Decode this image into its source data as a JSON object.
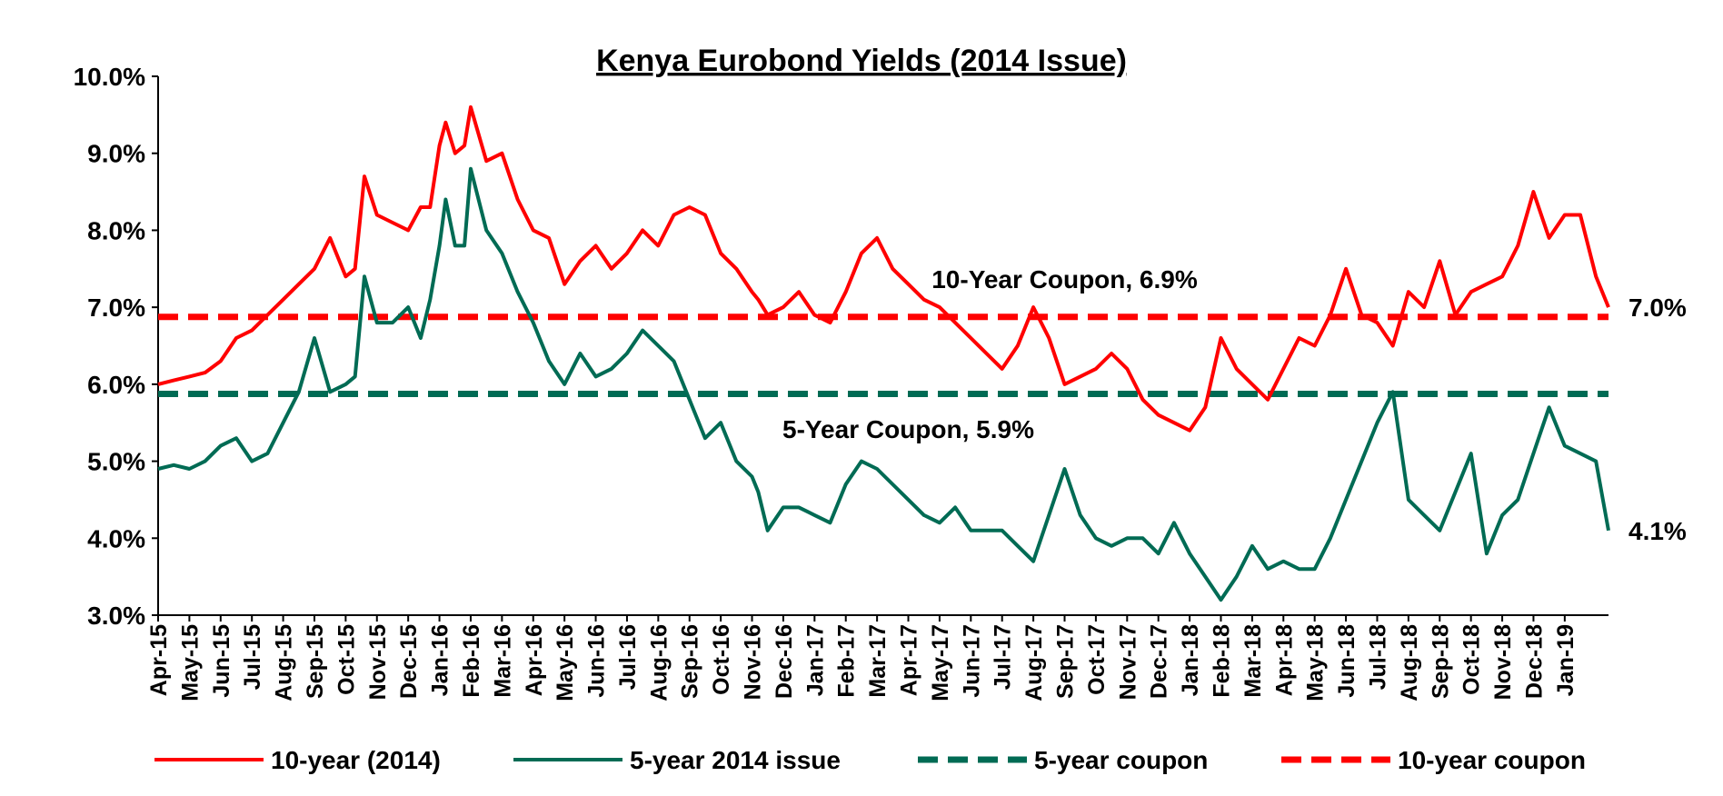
{
  "chart_data": {
    "type": "line",
    "title": "Kenya Eurobond Yields (2014 Issue)",
    "y_axis": {
      "min": 3.0,
      "max": 10.0,
      "ticks": [
        "3.0%",
        "4.0%",
        "5.0%",
        "6.0%",
        "7.0%",
        "8.0%",
        "9.0%",
        "10.0%"
      ]
    },
    "x_ticks": [
      "Apr-15",
      "May-15",
      "Jun-15",
      "Jul-15",
      "Aug-15",
      "Sep-15",
      "Oct-15",
      "Nov-15",
      "Dec-15",
      "Jan-16",
      "Feb-16",
      "Mar-16",
      "Apr-16",
      "May-16",
      "Jun-16",
      "Jul-16",
      "Aug-16",
      "Sep-16",
      "Oct-16",
      "Nov-16",
      "Dec-16",
      "Jan-17",
      "Feb-17",
      "Mar-17",
      "Apr-17",
      "May-17",
      "Jun-17",
      "Jul-17",
      "Aug-17",
      "Sep-17",
      "Oct-17",
      "Nov-17",
      "Dec-17",
      "Jan-18",
      "Feb-18",
      "Mar-18",
      "Apr-18",
      "May-18",
      "Jun-18",
      "Jul-18",
      "Aug-18",
      "Sep-18",
      "Oct-18",
      "Nov-18",
      "Dec-18",
      "Jan-19"
    ],
    "x_month_index_range": [
      0,
      46.4
    ],
    "series": [
      {
        "name": "10-year (2014)",
        "color": "#ff0000",
        "style": "solid",
        "x": [
          0,
          0.5,
          1,
          1.5,
          2,
          2.5,
          3,
          3.5,
          4,
          4.5,
          5,
          5.5,
          6,
          6.3,
          6.6,
          7,
          7.5,
          8,
          8.4,
          8.7,
          9,
          9.2,
          9.5,
          9.8,
          10,
          10.5,
          11,
          11.5,
          12,
          12.5,
          13,
          13.5,
          14,
          14.5,
          15,
          15.5,
          16,
          16.5,
          17,
          17.5,
          18,
          18.5,
          19,
          19.2,
          19.5,
          20,
          20.5,
          21,
          21.5,
          22,
          22.5,
          23,
          23.5,
          24,
          24.5,
          25,
          25.5,
          26,
          26.5,
          27,
          27.5,
          28,
          28.5,
          29,
          29.5,
          30,
          30.5,
          31,
          31.5,
          32,
          32.5,
          33,
          33.5,
          34,
          34.5,
          35,
          35.5,
          36,
          36.5,
          37,
          37.5,
          38,
          38.5,
          39,
          39.5,
          40,
          40.5,
          41,
          41.5,
          42,
          42.5,
          43,
          43.5,
          44,
          44.5,
          45,
          45.5,
          46,
          46.4
        ],
        "y": [
          6.0,
          6.05,
          6.1,
          6.15,
          6.3,
          6.6,
          6.7,
          6.9,
          7.1,
          7.3,
          7.5,
          7.9,
          7.4,
          7.5,
          8.7,
          8.2,
          8.1,
          8.0,
          8.3,
          8.3,
          9.1,
          9.4,
          9.0,
          9.1,
          9.6,
          8.9,
          9.0,
          8.4,
          8.0,
          7.9,
          7.3,
          7.6,
          7.8,
          7.5,
          7.7,
          8.0,
          7.8,
          8.2,
          8.3,
          8.2,
          7.7,
          7.5,
          7.2,
          7.1,
          6.9,
          7.0,
          7.2,
          6.9,
          6.8,
          7.2,
          7.7,
          7.9,
          7.5,
          7.3,
          7.1,
          7.0,
          6.8,
          6.6,
          6.4,
          6.2,
          6.5,
          7.0,
          6.6,
          6.0,
          6.1,
          6.2,
          6.4,
          6.2,
          5.8,
          5.6,
          5.5,
          5.4,
          5.7,
          6.6,
          6.2,
          6.0,
          5.8,
          6.2,
          6.6,
          6.5,
          6.9,
          7.5,
          6.9,
          6.8,
          6.5,
          7.2,
          7.0,
          7.6,
          6.9,
          7.2,
          7.3,
          7.4,
          7.8,
          8.5,
          7.9,
          8.2,
          8.2,
          7.4,
          7.0
        ]
      },
      {
        "name": "5-year 2014 issue",
        "color": "#006b54",
        "style": "solid",
        "x": [
          0,
          0.5,
          1,
          1.5,
          2,
          2.5,
          3,
          3.5,
          4,
          4.5,
          5,
          5.5,
          6,
          6.3,
          6.6,
          7,
          7.5,
          8,
          8.4,
          8.7,
          9,
          9.2,
          9.5,
          9.8,
          10,
          10.5,
          11,
          11.5,
          12,
          12.5,
          13,
          13.5,
          14,
          14.5,
          15,
          15.5,
          16,
          16.5,
          17,
          17.5,
          18,
          18.5,
          19,
          19.2,
          19.5,
          20,
          20.5,
          21,
          21.5,
          22,
          22.5,
          23,
          23.5,
          24,
          24.5,
          25,
          25.5,
          26,
          26.5,
          27,
          27.5,
          28,
          28.5,
          29,
          29.5,
          30,
          30.5,
          31,
          31.5,
          32,
          32.5,
          33,
          33.5,
          34,
          34.5,
          35,
          35.5,
          36,
          36.5,
          37,
          37.5,
          38,
          38.5,
          39,
          39.5,
          40,
          40.5,
          41,
          41.5,
          42,
          42.5,
          43,
          43.5,
          44,
          44.5,
          45,
          45.5,
          46,
          46.4
        ],
        "y": [
          4.9,
          4.95,
          4.9,
          5.0,
          5.2,
          5.3,
          5.0,
          5.1,
          5.5,
          5.9,
          6.6,
          5.9,
          6.0,
          6.1,
          7.4,
          6.8,
          6.8,
          7.0,
          6.6,
          7.1,
          7.8,
          8.4,
          7.8,
          7.8,
          8.8,
          8.0,
          7.7,
          7.2,
          6.8,
          6.3,
          6.0,
          6.4,
          6.1,
          6.2,
          6.4,
          6.7,
          6.5,
          6.3,
          5.8,
          5.3,
          5.5,
          5.0,
          4.8,
          4.6,
          4.1,
          4.4,
          4.4,
          4.3,
          4.2,
          4.7,
          5.0,
          4.9,
          4.7,
          4.5,
          4.3,
          4.2,
          4.4,
          4.1,
          4.1,
          4.1,
          3.9,
          3.7,
          4.3,
          4.9,
          4.3,
          4.0,
          3.9,
          4.0,
          4.0,
          3.8,
          4.2,
          3.8,
          3.5,
          3.2,
          3.5,
          3.9,
          3.6,
          3.7,
          3.6,
          3.6,
          4.0,
          4.5,
          5.0,
          5.5,
          5.9,
          4.5,
          4.3,
          4.1,
          4.6,
          5.1,
          3.8,
          4.3,
          4.5,
          5.1,
          5.7,
          5.2,
          5.1,
          5.0,
          4.1
        ]
      },
      {
        "name": "5-year coupon",
        "color": "#006b54",
        "style": "dashed",
        "value": 5.875
      },
      {
        "name": "10-year coupon",
        "color": "#ff0000",
        "style": "dashed",
        "value": 6.875
      }
    ],
    "annotations": [
      {
        "id": "coupon10",
        "text": "10-Year Coupon, 6.9%",
        "x": 29.0,
        "y": 7.25
      },
      {
        "id": "coupon5",
        "text": "5-Year Coupon, 5.9%",
        "x": 24.0,
        "y": 5.3
      },
      {
        "id": "end10",
        "text": "7.0%",
        "x": 46.4,
        "y": 7.0
      },
      {
        "id": "end5",
        "text": "4.1%",
        "x": 46.4,
        "y": 4.1
      }
    ],
    "legend": {
      "position": "bottom",
      "items": [
        "10-year (2014)",
        "5-year 2014 issue",
        "5-year coupon",
        "10-year coupon"
      ]
    },
    "grid": false
  }
}
